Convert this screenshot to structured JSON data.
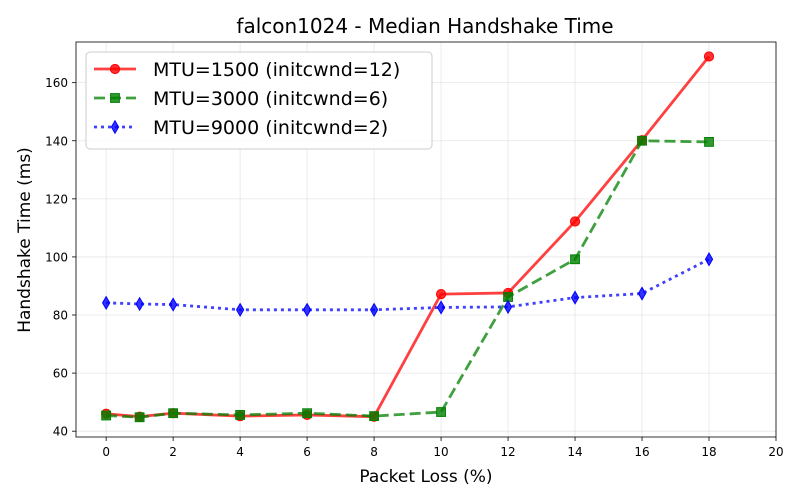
{
  "chart_data": {
    "type": "line",
    "title": "falcon1024 - Median Handshake Time",
    "xlabel": "Packet Loss (%)",
    "ylabel": "Handshake Time (ms)",
    "xlim": [
      -0.9,
      20
    ],
    "ylim": [
      38,
      174
    ],
    "xticks": [
      0,
      2,
      4,
      6,
      8,
      10,
      12,
      14,
      16,
      18,
      20
    ],
    "yticks": [
      40,
      60,
      80,
      100,
      120,
      140,
      160
    ],
    "grid": true,
    "legend_position": "top-left",
    "series": [
      {
        "name": "MTU=1500 (initcwnd=12)",
        "color": "#ff0000",
        "linestyle": "solid",
        "marker": "circle",
        "x": [
          0,
          1,
          2,
          4,
          6,
          8,
          10,
          12,
          14,
          16,
          18
        ],
        "y": [
          46.0,
          45.0,
          46.2,
          45.2,
          45.6,
          45.0,
          87.2,
          87.6,
          112.2,
          140.2,
          169.0
        ]
      },
      {
        "name": "MTU=3000 (initcwnd=6)",
        "color": "#008000",
        "linestyle": "dashed",
        "marker": "square",
        "x": [
          0,
          1,
          2,
          4,
          6,
          8,
          10,
          12,
          14,
          16,
          18
        ],
        "y": [
          45.4,
          44.8,
          46.2,
          45.6,
          46.2,
          45.2,
          46.6,
          86.2,
          99.2,
          140.0,
          139.6
        ]
      },
      {
        "name": "MTU=9000 (initcwnd=2)",
        "color": "#0000ff",
        "linestyle": "dotted",
        "marker": "diamond",
        "x": [
          0,
          1,
          2,
          4,
          6,
          8,
          10,
          12,
          14,
          16,
          18
        ],
        "y": [
          84.2,
          83.8,
          83.6,
          81.8,
          81.8,
          81.8,
          82.6,
          82.8,
          86.0,
          87.4,
          99.2
        ]
      }
    ]
  }
}
